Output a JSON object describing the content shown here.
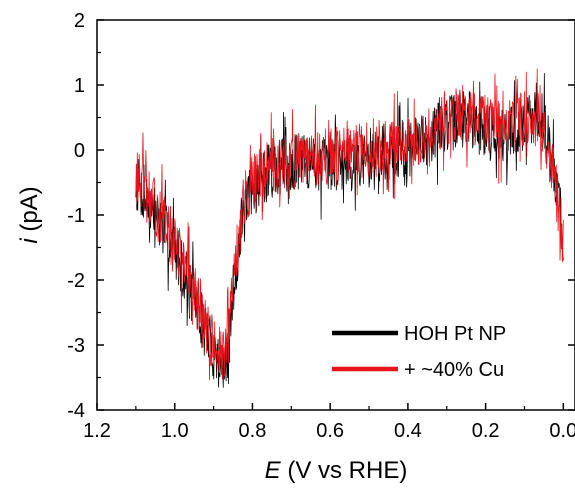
{
  "chart_data": {
    "type": "line",
    "xlabel_var": "E",
    "xlabel_rest": " (V vs RHE)",
    "ylabel_var": "i",
    "ylabel_rest": " (pA)",
    "xlim": [
      1.2,
      -0.03
    ],
    "ylim": [
      -4,
      2
    ],
    "x_reversed": true,
    "x_ticks": [
      1.2,
      1.0,
      0.8,
      0.6,
      0.4,
      0.2,
      0.0
    ],
    "x_tick_labels": [
      "1.2",
      "1.0",
      "0.8",
      "0.6",
      "0.4",
      "0.2",
      "0.0"
    ],
    "y_ticks": [
      2,
      1,
      0,
      -1,
      -2,
      -3,
      -4
    ],
    "y_tick_labels": [
      "2",
      "1",
      "0",
      "-1",
      "-2",
      "-3",
      "-4"
    ],
    "grid": false,
    "legend_position": "bottom-right",
    "series": [
      {
        "name": "HOH Pt NP",
        "color": "#000000",
        "noise": 0.55,
        "seed": 7,
        "x": [
          1.1,
          1.05,
          1.0,
          0.95,
          0.92,
          0.9,
          0.88,
          0.87,
          0.86,
          0.85,
          0.83,
          0.8,
          0.75,
          0.7,
          0.6,
          0.5,
          0.4,
          0.35,
          0.3,
          0.25,
          0.2,
          0.15,
          0.1,
          0.07,
          0.05,
          0.03,
          0.01,
          0.0
        ],
        "y": [
          -0.5,
          -1.0,
          -1.5,
          -2.3,
          -2.8,
          -3.1,
          -3.3,
          -3.4,
          -3.0,
          -2.2,
          -1.2,
          -0.6,
          -0.3,
          -0.2,
          -0.2,
          -0.1,
          0.0,
          0.2,
          0.4,
          0.5,
          0.3,
          0.2,
          0.4,
          0.6,
          0.4,
          -0.1,
          -0.8,
          -1.4
        ]
      },
      {
        "name": "+ ~40% Cu",
        "color": "#e8141b",
        "noise": 0.55,
        "seed": 13,
        "x": [
          1.1,
          1.05,
          1.0,
          0.95,
          0.92,
          0.9,
          0.88,
          0.87,
          0.86,
          0.85,
          0.83,
          0.8,
          0.75,
          0.7,
          0.6,
          0.5,
          0.4,
          0.35,
          0.3,
          0.25,
          0.2,
          0.15,
          0.1,
          0.07,
          0.05,
          0.03,
          0.01,
          0.0
        ],
        "y": [
          -0.4,
          -0.9,
          -1.4,
          -2.2,
          -2.7,
          -3.0,
          -3.2,
          -3.2,
          -2.8,
          -2.0,
          -1.0,
          -0.5,
          -0.2,
          -0.2,
          -0.1,
          0.0,
          0.1,
          0.3,
          0.5,
          0.6,
          0.4,
          0.3,
          0.5,
          0.5,
          0.3,
          -0.2,
          -0.9,
          -1.5
        ]
      }
    ]
  }
}
